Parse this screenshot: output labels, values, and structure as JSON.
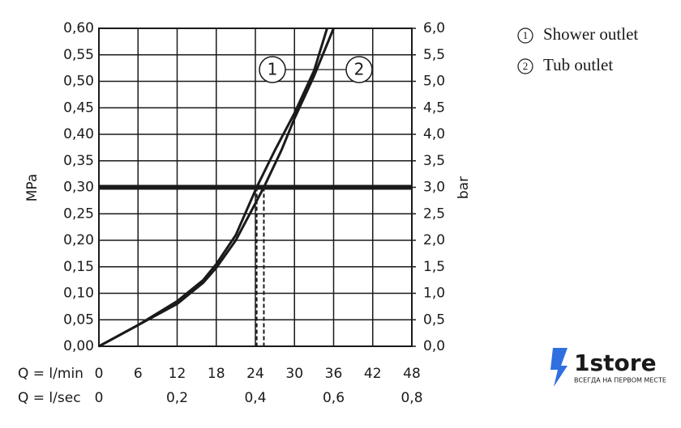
{
  "chart_data": {
    "type": "line",
    "y_label": "MPa",
    "y2_label": "bar",
    "x_label": "Q = l/min",
    "x2_label": "Q = l/sec",
    "xlim": [
      0,
      48
    ],
    "xticks": [
      0,
      6,
      12,
      18,
      24,
      30,
      36,
      42,
      48
    ],
    "x2lim": [
      0,
      0.8
    ],
    "x2ticks": [
      0,
      {
        "value": 0.2,
        "label": "0,2"
      },
      {
        "value": 0.4,
        "label": "0,4"
      },
      {
        "value": 0.6,
        "label": "0,6"
      },
      {
        "value": 0.8,
        "label": "0,8"
      }
    ],
    "ylim": [
      0,
      0.6
    ],
    "yticks": [
      {
        "value": 0,
        "label": "0,00"
      },
      {
        "value": 0.05,
        "label": "0,05"
      },
      {
        "value": 0.1,
        "label": "0,10"
      },
      {
        "value": 0.15,
        "label": "0,15"
      },
      {
        "value": 0.2,
        "label": "0,20"
      },
      {
        "value": 0.25,
        "label": "0,25"
      },
      {
        "value": 0.3,
        "label": "0,30"
      },
      {
        "value": 0.35,
        "label": "0,35"
      },
      {
        "value": 0.4,
        "label": "0,40"
      },
      {
        "value": 0.45,
        "label": "0,45"
      },
      {
        "value": 0.5,
        "label": "0,50"
      },
      {
        "value": 0.55,
        "label": "0,55"
      },
      {
        "value": 0.6,
        "label": "0,60"
      }
    ],
    "y2lim": [
      0,
      6
    ],
    "y2ticks": [
      {
        "value": 0,
        "label": "0,0"
      },
      {
        "value": 0.5,
        "label": "0,5"
      },
      {
        "value": 1,
        "label": "1,0"
      },
      {
        "value": 1.5,
        "label": "1,5"
      },
      {
        "value": 2,
        "label": "2,0"
      },
      {
        "value": 2.5,
        "label": "2,5"
      },
      {
        "value": 3,
        "label": "3,0"
      },
      {
        "value": 3.5,
        "label": "3,5"
      },
      {
        "value": 4,
        "label": "4,0"
      },
      {
        "value": 4.5,
        "label": "4,5"
      },
      {
        "value": 5,
        "label": "5,0"
      },
      {
        "value": 5.5,
        "label": "5,5"
      },
      {
        "value": 6,
        "label": "6,0"
      }
    ],
    "grid": true,
    "threshold": {
      "y": 0.3,
      "x": [
        24.2,
        25.3
      ]
    },
    "series": [
      {
        "name": "Shower outlet",
        "label": "1",
        "color": "#1a1a1a",
        "x": [
          0,
          6,
          12,
          16,
          18,
          21,
          24.2,
          27,
          30,
          33,
          35
        ],
        "values": [
          0,
          0.04,
          0.085,
          0.125,
          0.155,
          0.21,
          0.3,
          0.37,
          0.44,
          0.52,
          0.6
        ]
      },
      {
        "name": "Tub outlet",
        "label": "2",
        "color": "#1a1a1a",
        "x": [
          0,
          6,
          12,
          16,
          18,
          21,
          25.3,
          28,
          30,
          33,
          36
        ],
        "values": [
          0,
          0.04,
          0.08,
          0.12,
          0.148,
          0.2,
          0.3,
          0.37,
          0.43,
          0.51,
          0.6
        ]
      }
    ]
  },
  "watermark": {
    "title": "1store",
    "tagline": "ВСЕГДА НА ПЕРВОМ МЕСТЕ"
  }
}
